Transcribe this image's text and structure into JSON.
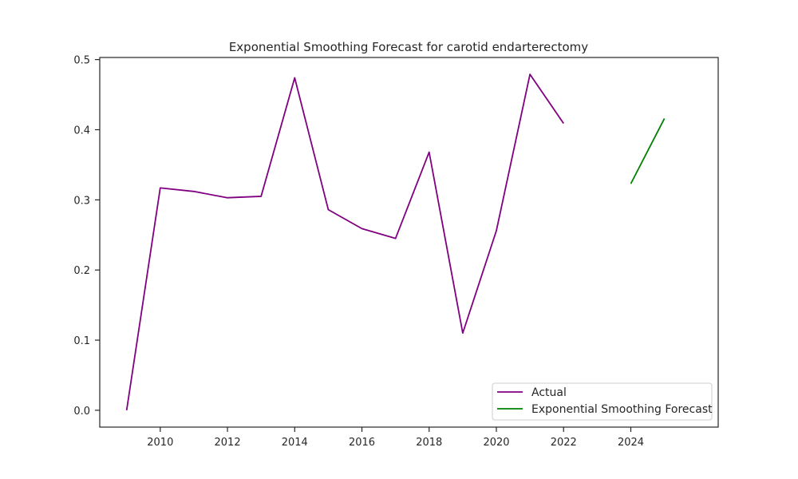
{
  "chart_data": {
    "type": "line",
    "title": "Exponential Smoothing Forecast for carotid endarterectomy",
    "xlabel": "",
    "ylabel": "",
    "xlim": [
      2008.2,
      2026.6
    ],
    "ylim": [
      -0.024,
      0.503
    ],
    "x_ticks": [
      2010,
      2012,
      2014,
      2016,
      2018,
      2020,
      2022,
      2024
    ],
    "y_ticks": [
      0.0,
      0.1,
      0.2,
      0.3,
      0.4,
      0.5
    ],
    "x_tick_labels": [
      "2010",
      "2012",
      "2014",
      "2016",
      "2018",
      "2020",
      "2022",
      "2024"
    ],
    "y_tick_labels": [
      "0.0",
      "0.1",
      "0.2",
      "0.3",
      "0.4",
      "0.5"
    ],
    "grid": false,
    "legend_position": "lower-right",
    "series": [
      {
        "name": "Actual",
        "color": "#800080",
        "x": [
          2009,
          2010,
          2011,
          2012,
          2013,
          2014,
          2015,
          2016,
          2017,
          2018,
          2019,
          2020,
          2021,
          2022
        ],
        "y": [
          0.0,
          0.317,
          0.312,
          0.303,
          0.305,
          0.474,
          0.286,
          0.259,
          0.245,
          0.368,
          0.11,
          0.256,
          0.479,
          0.409
        ]
      },
      {
        "name": "Exponential Smoothing Forecast",
        "color": "#008000",
        "x": [
          2024,
          2025
        ],
        "y": [
          0.323,
          0.416
        ]
      }
    ]
  }
}
